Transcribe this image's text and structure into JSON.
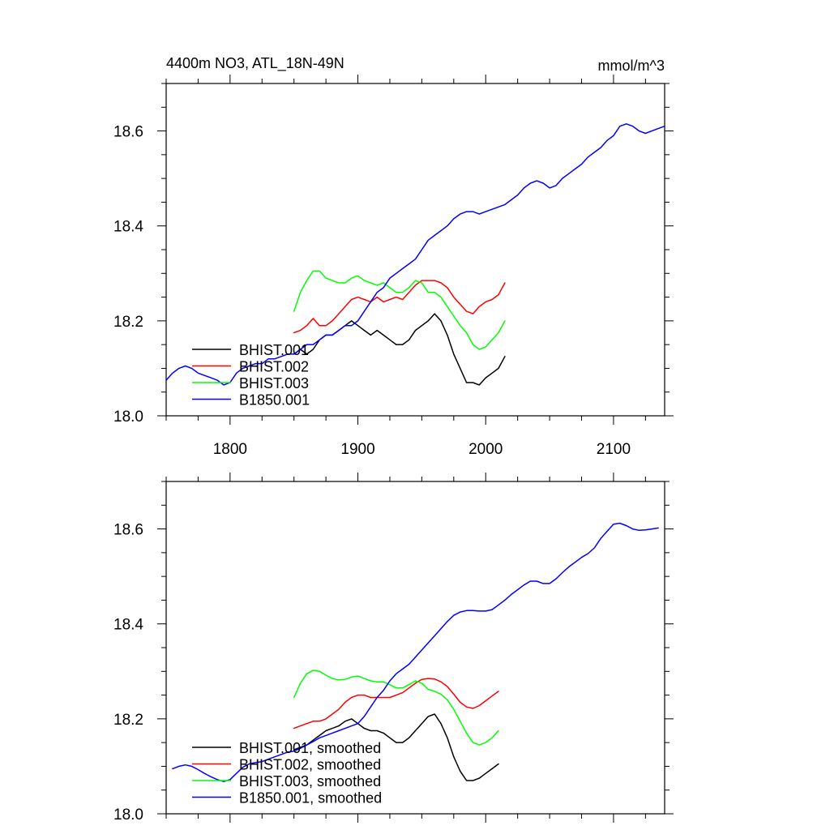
{
  "chart_data": [
    {
      "type": "line",
      "title": "4400m NO3, ATL_18N-49N",
      "units": "mmol/m^3",
      "xlim": [
        1750,
        2140
      ],
      "ylim": [
        18.0,
        18.7
      ],
      "xticks": [
        1800,
        1900,
        2000,
        2100
      ],
      "xtick_labels": [
        "1800",
        "1900",
        "2000",
        "2100"
      ],
      "yticks": [
        18.0,
        18.2,
        18.4,
        18.6
      ],
      "ytick_labels": [
        "18.0",
        "18.2",
        "18.4",
        "18.6"
      ],
      "grid": false,
      "legend_position": "bottom-left",
      "series": [
        {
          "name": "BHIST.001",
          "color": "#000000",
          "x": [
            1850,
            1855,
            1860,
            1865,
            1870,
            1875,
            1880,
            1885,
            1890,
            1895,
            1900,
            1905,
            1910,
            1915,
            1920,
            1925,
            1930,
            1935,
            1940,
            1945,
            1950,
            1955,
            1960,
            1965,
            1970,
            1975,
            1980,
            1985,
            1990,
            1995,
            2000,
            2005,
            2010,
            2015
          ],
          "y": [
            18.13,
            18.14,
            18.13,
            18.14,
            18.16,
            18.17,
            18.17,
            18.18,
            18.19,
            18.2,
            18.19,
            18.18,
            18.17,
            18.18,
            18.17,
            18.16,
            18.15,
            18.15,
            18.16,
            18.18,
            18.19,
            18.2,
            18.215,
            18.2,
            18.17,
            18.13,
            18.1,
            18.07,
            18.07,
            18.065,
            18.08,
            18.09,
            18.1,
            18.125
          ]
        },
        {
          "name": "BHIST.002",
          "color": "#ff0000",
          "x": [
            1850,
            1855,
            1860,
            1865,
            1870,
            1875,
            1880,
            1885,
            1890,
            1895,
            1900,
            1905,
            1910,
            1915,
            1920,
            1925,
            1930,
            1935,
            1940,
            1945,
            1950,
            1955,
            1960,
            1965,
            1970,
            1975,
            1980,
            1985,
            1990,
            1995,
            2000,
            2005,
            2010,
            2015
          ],
          "y": [
            18.175,
            18.18,
            18.19,
            18.205,
            18.19,
            18.19,
            18.2,
            18.215,
            18.23,
            18.245,
            18.25,
            18.245,
            18.24,
            18.25,
            18.24,
            18.245,
            18.25,
            18.245,
            18.26,
            18.275,
            18.285,
            18.285,
            18.285,
            18.28,
            18.27,
            18.25,
            18.235,
            18.22,
            18.215,
            18.23,
            18.24,
            18.245,
            18.255,
            18.28
          ]
        },
        {
          "name": "BHIST.003",
          "color": "#00ff00",
          "x": [
            1850,
            1855,
            1860,
            1865,
            1870,
            1875,
            1880,
            1885,
            1890,
            1895,
            1900,
            1905,
            1910,
            1915,
            1920,
            1925,
            1930,
            1935,
            1940,
            1945,
            1950,
            1955,
            1960,
            1965,
            1970,
            1975,
            1980,
            1985,
            1990,
            1995,
            2000,
            2005,
            2010,
            2015
          ],
          "y": [
            18.22,
            18.26,
            18.285,
            18.305,
            18.305,
            18.29,
            18.285,
            18.28,
            18.28,
            18.29,
            18.295,
            18.285,
            18.28,
            18.275,
            18.28,
            18.27,
            18.26,
            18.26,
            18.27,
            18.285,
            18.28,
            18.26,
            18.26,
            18.25,
            18.23,
            18.21,
            18.19,
            18.175,
            18.15,
            18.14,
            18.145,
            18.16,
            18.175,
            18.2
          ]
        },
        {
          "name": "B1850.001",
          "color": "#0000ff",
          "x": [
            1750,
            1755,
            1760,
            1765,
            1770,
            1775,
            1780,
            1785,
            1790,
            1795,
            1800,
            1805,
            1810,
            1815,
            1820,
            1825,
            1830,
            1835,
            1840,
            1845,
            1850,
            1855,
            1860,
            1865,
            1870,
            1875,
            1880,
            1885,
            1890,
            1895,
            1900,
            1905,
            1910,
            1915,
            1920,
            1925,
            1930,
            1935,
            1940,
            1945,
            1950,
            1955,
            1960,
            1965,
            1970,
            1975,
            1980,
            1985,
            1990,
            1995,
            2000,
            2005,
            2010,
            2015,
            2020,
            2025,
            2030,
            2035,
            2040,
            2045,
            2050,
            2055,
            2060,
            2065,
            2070,
            2075,
            2080,
            2085,
            2090,
            2095,
            2100,
            2105,
            2110,
            2115,
            2120,
            2125,
            2130,
            2135,
            2140
          ],
          "y": [
            18.075,
            18.09,
            18.1,
            18.105,
            18.1,
            18.09,
            18.085,
            18.08,
            18.075,
            18.065,
            18.07,
            18.09,
            18.1,
            18.105,
            18.11,
            18.11,
            18.12,
            18.12,
            18.125,
            18.13,
            18.13,
            18.14,
            18.15,
            18.15,
            18.16,
            18.17,
            18.17,
            18.18,
            18.19,
            18.19,
            18.2,
            18.22,
            18.24,
            18.26,
            18.27,
            18.29,
            18.3,
            18.31,
            18.32,
            18.33,
            18.35,
            18.37,
            18.38,
            18.39,
            18.4,
            18.415,
            18.425,
            18.43,
            18.43,
            18.425,
            18.43,
            18.435,
            18.44,
            18.445,
            18.455,
            18.465,
            18.48,
            18.49,
            18.495,
            18.49,
            18.48,
            18.485,
            18.5,
            18.51,
            18.52,
            18.53,
            18.545,
            18.555,
            18.565,
            18.58,
            18.59,
            18.61,
            18.615,
            18.61,
            18.6,
            18.595,
            18.6,
            18.605,
            18.61
          ]
        }
      ]
    },
    {
      "type": "line",
      "xlim": [
        1750,
        2140
      ],
      "ylim": [
        18.0,
        18.7
      ],
      "xticks": [
        1800,
        1900,
        2000,
        2100
      ],
      "yticks": [
        18.0,
        18.2,
        18.4,
        18.6
      ],
      "ytick_labels": [
        "18.0",
        "18.2",
        "18.4",
        "18.6"
      ],
      "grid": false,
      "legend_position": "bottom-left",
      "series": [
        {
          "name": "BHIST.001, smoothed",
          "color": "#000000",
          "x": [
            1850,
            1855,
            1860,
            1865,
            1870,
            1875,
            1880,
            1885,
            1890,
            1895,
            1900,
            1905,
            1910,
            1915,
            1920,
            1925,
            1930,
            1935,
            1940,
            1945,
            1950,
            1955,
            1960,
            1965,
            1970,
            1975,
            1980,
            1985,
            1990,
            1995,
            2000,
            2005,
            2010
          ],
          "y": [
            18.135,
            18.14,
            18.145,
            18.155,
            18.165,
            18.175,
            18.18,
            18.185,
            18.195,
            18.2,
            18.19,
            18.18,
            18.175,
            18.175,
            18.17,
            18.16,
            18.15,
            18.15,
            18.16,
            18.175,
            18.19,
            18.205,
            18.21,
            18.19,
            18.16,
            18.12,
            18.09,
            18.07,
            18.07,
            18.075,
            18.085,
            18.095,
            18.105
          ]
        },
        {
          "name": "BHIST.002, smoothed",
          "color": "#ff0000",
          "x": [
            1850,
            1855,
            1860,
            1865,
            1870,
            1875,
            1880,
            1885,
            1890,
            1895,
            1900,
            1905,
            1910,
            1915,
            1920,
            1925,
            1930,
            1935,
            1940,
            1945,
            1950,
            1955,
            1960,
            1965,
            1970,
            1975,
            1980,
            1985,
            1990,
            1995,
            2000,
            2005,
            2010
          ],
          "y": [
            18.18,
            18.185,
            18.19,
            18.195,
            18.195,
            18.2,
            18.21,
            18.22,
            18.235,
            18.245,
            18.25,
            18.25,
            18.245,
            18.245,
            18.245,
            18.245,
            18.25,
            18.255,
            18.265,
            18.275,
            18.283,
            18.285,
            18.284,
            18.278,
            18.268,
            18.252,
            18.235,
            18.225,
            18.222,
            18.228,
            18.238,
            18.248,
            18.258
          ]
        },
        {
          "name": "BHIST.003, smoothed",
          "color": "#00ff00",
          "x": [
            1850,
            1855,
            1860,
            1865,
            1870,
            1875,
            1880,
            1885,
            1890,
            1895,
            1900,
            1905,
            1910,
            1915,
            1920,
            1925,
            1930,
            1935,
            1940,
            1945,
            1950,
            1955,
            1960,
            1965,
            1970,
            1975,
            1980,
            1985,
            1990,
            1995,
            2000,
            2005,
            2010
          ],
          "y": [
            18.245,
            18.275,
            18.295,
            18.302,
            18.3,
            18.292,
            18.285,
            18.282,
            18.283,
            18.288,
            18.29,
            18.285,
            18.28,
            18.278,
            18.278,
            18.272,
            18.265,
            18.265,
            18.272,
            18.28,
            18.275,
            18.262,
            18.258,
            18.252,
            18.24,
            18.22,
            18.195,
            18.17,
            18.15,
            18.145,
            18.15,
            18.16,
            18.175
          ]
        },
        {
          "name": "B1850.001, smoothed",
          "color": "#0000ff",
          "x": [
            1755,
            1760,
            1765,
            1770,
            1775,
            1780,
            1785,
            1790,
            1795,
            1800,
            1805,
            1810,
            1815,
            1820,
            1825,
            1830,
            1835,
            1840,
            1845,
            1850,
            1855,
            1860,
            1865,
            1870,
            1875,
            1880,
            1885,
            1890,
            1895,
            1900,
            1905,
            1910,
            1915,
            1920,
            1925,
            1930,
            1935,
            1940,
            1945,
            1950,
            1955,
            1960,
            1965,
            1970,
            1975,
            1980,
            1985,
            1990,
            1995,
            2000,
            2005,
            2010,
            2015,
            2020,
            2025,
            2030,
            2035,
            2040,
            2045,
            2050,
            2055,
            2060,
            2065,
            2070,
            2075,
            2080,
            2085,
            2090,
            2095,
            2100,
            2105,
            2110,
            2115,
            2120,
            2125,
            2130,
            2135
          ],
          "y": [
            18.095,
            18.1,
            18.103,
            18.1,
            18.093,
            18.085,
            18.078,
            18.072,
            18.068,
            18.072,
            18.085,
            18.098,
            18.105,
            18.108,
            18.11,
            18.115,
            18.12,
            18.125,
            18.13,
            18.132,
            18.138,
            18.145,
            18.152,
            18.16,
            18.165,
            18.17,
            18.175,
            18.18,
            18.185,
            18.19,
            18.205,
            18.225,
            18.245,
            18.26,
            18.28,
            18.295,
            18.305,
            18.315,
            18.33,
            18.345,
            18.36,
            18.375,
            18.39,
            18.405,
            18.418,
            18.425,
            18.428,
            18.428,
            18.427,
            18.427,
            18.43,
            18.44,
            18.45,
            18.462,
            18.472,
            18.482,
            18.49,
            18.49,
            18.485,
            18.485,
            18.495,
            18.508,
            18.52,
            18.53,
            18.54,
            18.548,
            18.56,
            18.58,
            18.595,
            18.61,
            18.612,
            18.607,
            18.6,
            18.597,
            18.598,
            18.6,
            18.602
          ]
        }
      ]
    }
  ]
}
